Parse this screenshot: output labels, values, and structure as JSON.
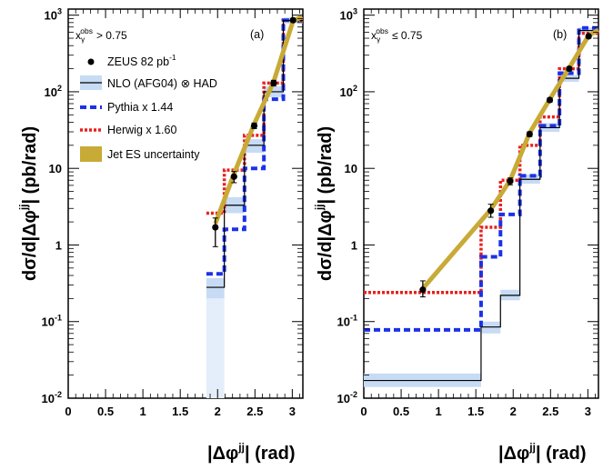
{
  "chart_data": [
    {
      "type": "line",
      "panel_label": "(a)",
      "cut_main": "x",
      "cut_sub": "γ",
      "cut_sup": "obs",
      "cut_rel": "> 0.75",
      "xlabel": "|Δφ",
      "xlabel_sup": "jj",
      "xlabel_tail": "| (rad)",
      "ylabel": "dσ/d|Δφ",
      "ylabel_sup": "jj",
      "ylabel_tail": "| (pb/rad)",
      "xlim": [
        0,
        3.1416
      ],
      "ylim": [
        0.01,
        1200
      ],
      "y_scale": "log",
      "x_ticks": [
        "0",
        "0.5",
        "1",
        "1.5",
        "2",
        "2.5",
        "3"
      ],
      "x_tick_values": [
        0,
        0.5,
        1,
        1.5,
        2,
        2.5,
        3
      ],
      "y_ticks": [
        {
          "base": "10",
          "exp": "-2"
        },
        {
          "base": "10",
          "exp": "-1"
        },
        {
          "base": "1",
          "exp": ""
        },
        {
          "base": "10",
          "exp": ""
        },
        {
          "base": "10",
          "exp": "2"
        },
        {
          "base": "10",
          "exp": "3"
        }
      ],
      "y_tick_values": [
        0.01,
        0.1,
        1,
        10,
        100,
        1000
      ],
      "bin_edges": [
        1.85,
        2.09,
        2.36,
        2.62,
        2.88,
        3.1416
      ],
      "zeus": {
        "name": "ZEUS 82 pb",
        "x": [
          1.97,
          2.22,
          2.49,
          2.75,
          3.01
        ],
        "y": [
          1.7,
          7.8,
          36,
          130,
          860
        ],
        "err_lo": [
          0.75,
          1.3,
          3,
          11,
          40
        ],
        "err_hi": [
          0.55,
          1.3,
          3,
          11,
          40
        ]
      },
      "nlo": {
        "name": "NLO (AFG04) ⊗ HAD",
        "values": [
          0.28,
          3.3,
          20,
          100,
          850
        ],
        "band_lo": [
          0.2,
          2.6,
          16,
          85,
          780
        ],
        "band_hi": [
          0.37,
          4.2,
          24,
          118,
          930
        ]
      },
      "nlo_low_band": {
        "x": [
          1.85,
          2.09
        ],
        "lo": 0.01,
        "hi": 0.2
      },
      "pythia": {
        "name": "Pythia x 1.44",
        "values": [
          0.42,
          1.6,
          10,
          80,
          860
        ]
      },
      "herwig": {
        "name": "Herwig x 1.60",
        "x_start": 1.85,
        "values": [
          2.6,
          9.5,
          27,
          130,
          860
        ]
      },
      "jes": {
        "name": "Jet ES uncertainty",
        "x": [
          1.97,
          2.22,
          2.49,
          2.75,
          3.01,
          3.13
        ],
        "y": [
          1.9,
          8.5,
          38,
          135,
          840,
          950
        ]
      }
    },
    {
      "type": "line",
      "panel_label": "(b)",
      "cut_main": "x",
      "cut_sub": "γ",
      "cut_sup": "obs",
      "cut_rel": "≤ 0.75",
      "xlabel": "|Δφ",
      "xlabel_sup": "jj",
      "xlabel_tail": "| (rad)",
      "ylabel": "dσ/d|Δφ",
      "ylabel_sup": "jj",
      "ylabel_tail": "| (pb/rad)",
      "xlim": [
        0,
        3.1416
      ],
      "ylim": [
        0.01,
        1200
      ],
      "y_scale": "log",
      "x_ticks": [
        "0",
        "0.5",
        "1",
        "1.5",
        "2",
        "2.5",
        "3"
      ],
      "x_tick_values": [
        0,
        0.5,
        1,
        1.5,
        2,
        2.5,
        3
      ],
      "y_ticks": [
        {
          "base": "10",
          "exp": "-2"
        },
        {
          "base": "10",
          "exp": "-1"
        },
        {
          "base": "1",
          "exp": ""
        },
        {
          "base": "10",
          "exp": ""
        },
        {
          "base": "10",
          "exp": "2"
        },
        {
          "base": "10",
          "exp": "3"
        }
      ],
      "y_tick_values": [
        0.01,
        0.1,
        1,
        10,
        100,
        1000
      ],
      "bin_edges": [
        0,
        1.57,
        1.83,
        2.09,
        2.36,
        2.62,
        2.88,
        3.1416
      ],
      "zeus": {
        "x": [
          0.79,
          1.7,
          1.96,
          2.22,
          2.49,
          2.75,
          3.01
        ],
        "y": [
          0.26,
          2.8,
          6.8,
          28,
          78,
          200,
          530
        ],
        "err_lo": [
          0.05,
          0.5,
          0.7,
          2,
          5,
          12,
          30
        ],
        "err_hi": [
          0.08,
          0.6,
          0.7,
          2,
          5,
          12,
          30
        ]
      },
      "nlo": {
        "values": [
          0.017,
          0.085,
          0.22,
          7.2,
          34,
          150,
          630
        ],
        "band_lo": [
          0.014,
          0.07,
          0.19,
          6.3,
          30,
          135,
          580
        ],
        "band_hi": [
          0.021,
          0.1,
          0.26,
          8.3,
          39,
          165,
          690
        ]
      },
      "pythia": {
        "values": [
          0.078,
          0.7,
          2.5,
          8.0,
          36,
          175,
          680
        ]
      },
      "herwig": {
        "values": [
          0.24,
          1.7,
          7.0,
          20.0,
          47,
          200,
          580
        ]
      },
      "jes": {
        "x": [
          0.79,
          1.7,
          1.96,
          2.22,
          2.49,
          2.75,
          3.01,
          3.14
        ],
        "y": [
          0.27,
          2.9,
          7.0,
          29,
          80,
          205,
          540,
          640
        ]
      }
    }
  ],
  "legend_sup": "-1",
  "colors": {
    "nlo_band": "#c7dbf4",
    "pythia": "#1b32e8",
    "herwig": "#e8201d",
    "jes": "#c8aa36",
    "data": "#000000"
  }
}
